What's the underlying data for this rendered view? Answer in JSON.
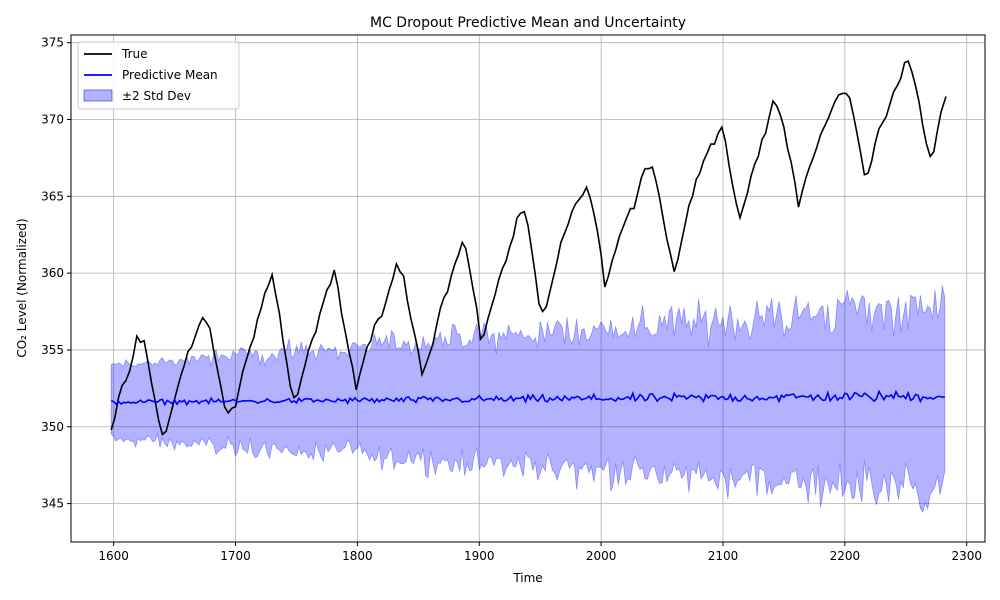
{
  "chart_data": {
    "type": "line",
    "title": "MC Dropout Predictive Mean and Uncertainty",
    "xlabel": "Time",
    "ylabel": "CO₂ Level (Normalized)",
    "xlim": [
      1565,
      2315
    ],
    "ylim": [
      342.5,
      375.5
    ],
    "xticks": [
      1600,
      1700,
      1800,
      1900,
      2000,
      2100,
      2200,
      2300
    ],
    "yticks": [
      345,
      350,
      355,
      360,
      365,
      370,
      375
    ],
    "grid": true,
    "legend_position": "top-left",
    "x_range": [
      1598,
      2283
    ],
    "series": [
      {
        "name": "True",
        "color": "#000000",
        "style": "line",
        "points": [
          [
            1598,
            349.8
          ],
          [
            1601,
            350.6
          ],
          [
            1604,
            351.9
          ],
          [
            1607,
            352.7
          ],
          [
            1610,
            353.0
          ],
          [
            1613,
            353.6
          ],
          [
            1616,
            354.6
          ],
          [
            1619,
            355.9
          ],
          [
            1622,
            355.5
          ],
          [
            1625,
            355.6
          ],
          [
            1628,
            354.3
          ],
          [
            1631,
            352.9
          ],
          [
            1634,
            351.7
          ],
          [
            1637,
            350.4
          ],
          [
            1640,
            349.5
          ],
          [
            1643,
            349.7
          ],
          [
            1646,
            350.6
          ],
          [
            1649,
            351.5
          ],
          [
            1652,
            352.4
          ],
          [
            1655,
            353.3
          ],
          [
            1658,
            354.0
          ],
          [
            1661,
            354.9
          ],
          [
            1664,
            355.2
          ],
          [
            1667,
            355.9
          ],
          [
            1670,
            356.6
          ],
          [
            1673,
            357.1
          ],
          [
            1676,
            356.8
          ],
          [
            1679,
            356.4
          ],
          [
            1682,
            355.0
          ],
          [
            1685,
            353.8
          ],
          [
            1688,
            352.6
          ],
          [
            1691,
            351.3
          ],
          [
            1694,
            350.9
          ],
          [
            1697,
            351.2
          ],
          [
            1700,
            351.3
          ],
          [
            1703,
            352.5
          ],
          [
            1706,
            353.6
          ],
          [
            1709,
            354.4
          ],
          [
            1712,
            355.2
          ],
          [
            1715,
            355.8
          ],
          [
            1718,
            357.0
          ],
          [
            1721,
            357.7
          ],
          [
            1724,
            358.7
          ],
          [
            1727,
            359.2
          ],
          [
            1730,
            359.9
          ],
          [
            1733,
            358.6
          ],
          [
            1736,
            357.4
          ],
          [
            1739,
            355.6
          ],
          [
            1742,
            354.2
          ],
          [
            1745,
            352.6
          ],
          [
            1748,
            351.9
          ],
          [
            1751,
            352.1
          ],
          [
            1754,
            353.1
          ],
          [
            1757,
            354.0
          ],
          [
            1760,
            355.0
          ],
          [
            1763,
            355.7
          ],
          [
            1766,
            356.2
          ],
          [
            1769,
            357.3
          ],
          [
            1772,
            358.1
          ],
          [
            1775,
            358.9
          ],
          [
            1778,
            359.3
          ],
          [
            1781,
            360.2
          ],
          [
            1784,
            359.1
          ],
          [
            1787,
            357.4
          ],
          [
            1790,
            356.2
          ],
          [
            1793,
            354.9
          ],
          [
            1796,
            353.9
          ],
          [
            1799,
            352.4
          ],
          [
            1802,
            353.4
          ],
          [
            1805,
            354.3
          ],
          [
            1808,
            355.2
          ],
          [
            1811,
            355.6
          ],
          [
            1814,
            356.6
          ],
          [
            1817,
            357.0
          ],
          [
            1820,
            357.2
          ],
          [
            1823,
            358.0
          ],
          [
            1826,
            358.9
          ],
          [
            1829,
            359.6
          ],
          [
            1832,
            360.6
          ],
          [
            1835,
            360.1
          ],
          [
            1838,
            359.8
          ],
          [
            1841,
            358.2
          ],
          [
            1844,
            357.0
          ],
          [
            1847,
            356.0
          ],
          [
            1850,
            354.9
          ],
          [
            1853,
            353.4
          ],
          [
            1856,
            354.0
          ],
          [
            1859,
            354.7
          ],
          [
            1862,
            355.4
          ],
          [
            1865,
            356.6
          ],
          [
            1868,
            357.7
          ],
          [
            1871,
            358.4
          ],
          [
            1874,
            358.8
          ],
          [
            1877,
            359.8
          ],
          [
            1880,
            360.6
          ],
          [
            1883,
            361.2
          ],
          [
            1886,
            362.0
          ],
          [
            1889,
            361.6
          ],
          [
            1892,
            360.3
          ],
          [
            1895,
            358.9
          ],
          [
            1898,
            357.7
          ],
          [
            1901,
            355.7
          ],
          [
            1904,
            356.0
          ],
          [
            1907,
            357.0
          ],
          [
            1910,
            357.8
          ],
          [
            1913,
            358.6
          ],
          [
            1916,
            359.6
          ],
          [
            1919,
            360.3
          ],
          [
            1922,
            360.8
          ],
          [
            1925,
            361.7
          ],
          [
            1928,
            362.4
          ],
          [
            1931,
            363.6
          ],
          [
            1934,
            363.9
          ],
          [
            1937,
            364.0
          ],
          [
            1940,
            363.1
          ],
          [
            1943,
            361.5
          ],
          [
            1946,
            359.9
          ],
          [
            1949,
            358.0
          ],
          [
            1952,
            357.5
          ],
          [
            1955,
            357.8
          ],
          [
            1958,
            358.8
          ],
          [
            1961,
            359.8
          ],
          [
            1964,
            360.8
          ],
          [
            1967,
            362.0
          ],
          [
            1970,
            362.6
          ],
          [
            1973,
            363.2
          ],
          [
            1976,
            364.0
          ],
          [
            1979,
            364.5
          ],
          [
            1982,
            364.8
          ],
          [
            1985,
            365.1
          ],
          [
            1988,
            365.6
          ],
          [
            1991,
            364.9
          ],
          [
            1994,
            363.9
          ],
          [
            1997,
            362.7
          ],
          [
            2000,
            361.2
          ],
          [
            2003,
            359.1
          ],
          [
            2006,
            359.8
          ],
          [
            2009,
            360.8
          ],
          [
            2012,
            361.5
          ],
          [
            2015,
            362.4
          ],
          [
            2018,
            363.0
          ],
          [
            2021,
            363.6
          ],
          [
            2024,
            364.2
          ],
          [
            2027,
            364.2
          ],
          [
            2030,
            365.2
          ],
          [
            2033,
            366.2
          ],
          [
            2036,
            366.8
          ],
          [
            2039,
            366.8
          ],
          [
            2042,
            366.9
          ],
          [
            2045,
            366.0
          ],
          [
            2048,
            364.9
          ],
          [
            2051,
            363.5
          ],
          [
            2054,
            362.2
          ],
          [
            2057,
            361.2
          ],
          [
            2060,
            360.1
          ],
          [
            2063,
            360.9
          ],
          [
            2066,
            362.1
          ],
          [
            2069,
            363.2
          ],
          [
            2072,
            364.4
          ],
          [
            2075,
            365.0
          ],
          [
            2078,
            366.1
          ],
          [
            2081,
            366.5
          ],
          [
            2084,
            367.3
          ],
          [
            2087,
            367.8
          ],
          [
            2090,
            368.4
          ],
          [
            2093,
            368.4
          ],
          [
            2096,
            369.1
          ],
          [
            2099,
            369.5
          ],
          [
            2102,
            368.6
          ],
          [
            2105,
            367.0
          ],
          [
            2108,
            365.7
          ],
          [
            2111,
            364.5
          ],
          [
            2114,
            363.6
          ],
          [
            2117,
            364.4
          ],
          [
            2120,
            365.2
          ],
          [
            2123,
            366.3
          ],
          [
            2126,
            367.1
          ],
          [
            2129,
            367.6
          ],
          [
            2132,
            368.7
          ],
          [
            2135,
            369.1
          ],
          [
            2138,
            370.2
          ],
          [
            2141,
            371.2
          ],
          [
            2144,
            370.9
          ],
          [
            2147,
            370.3
          ],
          [
            2150,
            369.5
          ],
          [
            2153,
            368.1
          ],
          [
            2156,
            367.2
          ],
          [
            2159,
            365.9
          ],
          [
            2162,
            364.3
          ],
          [
            2165,
            365.3
          ],
          [
            2168,
            366.2
          ],
          [
            2171,
            366.9
          ],
          [
            2174,
            367.5
          ],
          [
            2177,
            368.2
          ],
          [
            2180,
            369.0
          ],
          [
            2183,
            369.5
          ],
          [
            2186,
            370.0
          ],
          [
            2189,
            370.6
          ],
          [
            2192,
            371.2
          ],
          [
            2195,
            371.6
          ],
          [
            2198,
            371.7
          ],
          [
            2201,
            371.7
          ],
          [
            2204,
            371.4
          ],
          [
            2207,
            370.3
          ],
          [
            2210,
            369.1
          ],
          [
            2213,
            367.8
          ],
          [
            2216,
            366.4
          ],
          [
            2219,
            366.5
          ],
          [
            2222,
            367.3
          ],
          [
            2225,
            368.5
          ],
          [
            2228,
            369.4
          ],
          [
            2231,
            369.8
          ],
          [
            2234,
            370.2
          ],
          [
            2237,
            371.0
          ],
          [
            2240,
            371.8
          ],
          [
            2243,
            372.2
          ],
          [
            2246,
            372.7
          ],
          [
            2249,
            373.7
          ],
          [
            2252,
            373.8
          ],
          [
            2255,
            373.1
          ],
          [
            2258,
            372.2
          ],
          [
            2261,
            371.1
          ],
          [
            2264,
            369.6
          ],
          [
            2267,
            368.4
          ],
          [
            2270,
            367.6
          ],
          [
            2273,
            367.9
          ],
          [
            2276,
            369.3
          ],
          [
            2279,
            370.5
          ],
          [
            2283,
            371.5
          ]
        ]
      },
      {
        "name": "Predictive Mean",
        "color": "#0000ff",
        "style": "noisy-line",
        "center_start": 351.6,
        "center_end": 352.0,
        "noise_start": 0.12,
        "noise_end": 0.3
      },
      {
        "name": "±2 Std Dev",
        "color": "#0000ff",
        "style": "band",
        "fill_opacity": 0.3,
        "upper_start": 354.0,
        "upper_end": 358.0,
        "lower_start": 349.2,
        "lower_end": 345.8,
        "noise_start": 0.35,
        "noise_end": 1.4
      }
    ]
  }
}
